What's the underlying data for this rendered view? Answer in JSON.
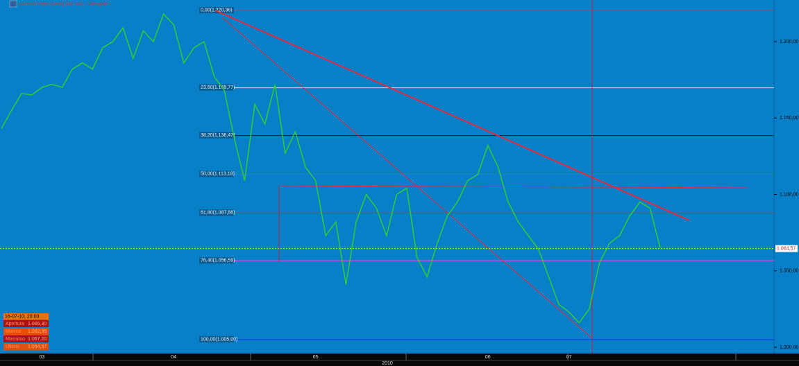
{
  "chart_data": {
    "type": "line",
    "title": "S&P500 Index (cash) (INTRA) - Triangolo 1",
    "categories": [
      null,
      null,
      null,
      null,
      "03",
      null,
      null,
      null,
      null,
      null,
      null,
      null,
      null,
      null,
      null,
      null,
      null,
      "04",
      null,
      null,
      null,
      null,
      null,
      null,
      null,
      null,
      null,
      null,
      null,
      null,
      null,
      "05",
      null,
      null,
      null,
      null,
      null,
      null,
      null,
      null,
      null,
      null,
      null,
      null,
      null,
      null,
      null,
      null,
      "06",
      null,
      null,
      null,
      null,
      null,
      null,
      null,
      "07",
      null,
      null,
      null,
      null,
      null,
      null,
      null,
      null,
      null
    ],
    "values": [
      1143,
      1155,
      1166,
      1165,
      1170,
      1172,
      1170,
      1182,
      1186,
      1182,
      1196,
      1200,
      1209,
      1189,
      1207,
      1200,
      1218,
      1211,
      1186,
      1196,
      1200,
      1177,
      1168,
      1136,
      1109,
      1159,
      1146,
      1172,
      1127,
      1141,
      1118,
      1109,
      1073,
      1082,
      1041,
      1082,
      1100,
      1091,
      1073,
      1100,
      1104,
      1059,
      1046,
      1068,
      1086,
      1095,
      1109,
      1113,
      1132,
      1118,
      1095,
      1082,
      1073,
      1064,
      1046,
      1028,
      1023,
      1016,
      1025,
      1055,
      1068,
      1073,
      1086,
      1095,
      1091,
      1065
    ],
    "color": "#33cc33",
    "year_label": "2010",
    "ylim": [
      995.9,
      1227.2
    ],
    "yticks": [
      {
        "value": 1000,
        "label": "1.000,00"
      },
      {
        "value": 1050,
        "label": "1.050,00"
      },
      {
        "value": 1100,
        "label": "1.100,00"
      },
      {
        "value": 1150,
        "label": "1.150,00"
      },
      {
        "value": 1200,
        "label": "1.200,00"
      }
    ],
    "fib_levels": [
      {
        "value": 1220.36,
        "label": "0,00(1.220,36)",
        "color": "#e0304a"
      },
      {
        "value": 1169.77,
        "label": "23,60(1.169,77)",
        "color": "#d8d8e8"
      },
      {
        "value": 1138.47,
        "label": "38,20(1.138,47)",
        "color": "#101030"
      },
      {
        "value": 1113.18,
        "label": "50,00(1.113,18)",
        "color": "#20a040"
      },
      {
        "value": 1087.88,
        "label": "61,80(1.087,88)",
        "color": "#b03060"
      },
      {
        "value": 1056.59,
        "label": "76,40(1.056,59)",
        "color": "#ff40ff"
      },
      {
        "value": 1005.0,
        "label": "100,00(1.005,00)",
        "color": "#1030ff"
      }
    ],
    "last_price": {
      "value": 1064.57,
      "label": "1.064,57"
    },
    "info_box": {
      "time": "16-07-10, 20:00",
      "rows": [
        [
          "Apertura",
          "1.065,30"
        ],
        [
          "Minimo",
          "1.062,95"
        ],
        [
          "Massimo",
          "1.067,20"
        ],
        [
          "Ultimo",
          "1.064,57"
        ]
      ]
    }
  }
}
